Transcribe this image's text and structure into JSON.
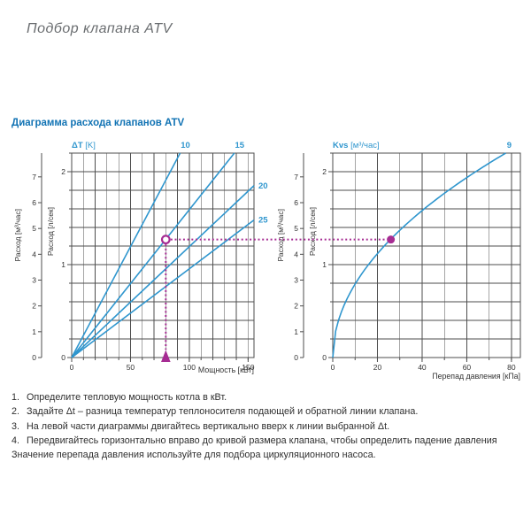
{
  "page": {
    "title": "Подбор клапана ATV",
    "section_title": "Диаграмма расхода клапанов ATV"
  },
  "colors": {
    "accent_blue": "#2f96ce",
    "title_blue": "#1173b4",
    "magenta": "#a62c93",
    "grid": "#4d4d4d",
    "text_dark": "#333333",
    "header_gray": "#6a6d70"
  },
  "chart_data": [
    {
      "name": "power-flow-chart",
      "type": "line",
      "title_bold": "ΔT",
      "title_unit": " [K]",
      "xlabel": "Мощность [кВт]",
      "ylabel_primary": "Расход [м³/час]",
      "ylabel_secondary": "Расход [л/сек]",
      "xlim": [
        0,
        155
      ],
      "x_grid_step": 10,
      "x_ticks_labeled": [
        0,
        50,
        100,
        150
      ],
      "ylim_lsec": [
        0,
        2.2
      ],
      "y_grid_step_lsec": 0.2,
      "y_ticks_m3h": [
        0,
        1,
        2,
        3,
        4,
        5,
        6,
        7
      ],
      "y_ticks_lsec": [
        0,
        1,
        2
      ],
      "series": [
        {
          "name": "10",
          "dt_k": 10,
          "points_kw_lsec": [
            [
              0,
              0
            ],
            [
              92.2,
              2.2
            ]
          ],
          "label_pos": "top"
        },
        {
          "name": "15",
          "dt_k": 15,
          "points_kw_lsec": [
            [
              0,
              0
            ],
            [
              138.3,
              2.2
            ]
          ],
          "label_pos": "top"
        },
        {
          "name": "20",
          "dt_k": 20,
          "points_kw_lsec": [
            [
              0,
              0
            ],
            [
              155,
              1.85
            ]
          ],
          "label_pos": "right"
        },
        {
          "name": "25",
          "dt_k": 25,
          "points_kw_lsec": [
            [
              0,
              0
            ],
            [
              155,
              1.48
            ]
          ],
          "label_pos": "right"
        }
      ]
    },
    {
      "name": "kvs-pressure-chart",
      "type": "line",
      "title_bold": "Kvs",
      "title_unit": " [м³/час]",
      "xlabel": "Перепад давления [кПа]",
      "ylabel_primary": "Расход [м³/час]",
      "ylabel_secondary": "Расход [л/сек]",
      "xlim": [
        0,
        84
      ],
      "x_grid_step": 10,
      "x_ticks_labeled": [
        0,
        20,
        40,
        60,
        80
      ],
      "ylim_lsec": [
        0,
        2.2
      ],
      "y_grid_step_lsec": 0.2,
      "y_ticks_m3h": [
        0,
        1,
        2,
        3,
        4,
        5,
        6,
        7
      ],
      "y_ticks_lsec": [
        0,
        1,
        2
      ],
      "series": [
        {
          "name": "9",
          "kvs_m3h": 9
        }
      ]
    }
  ],
  "annotation": {
    "power_kw": 80,
    "flow_lsec": 1.27,
    "flow_m3h": 4.57,
    "dp_kpa": 26,
    "on_dt_line": "15",
    "on_kvs_curve": "9"
  },
  "instructions": [
    {
      "num": "1.",
      "text": "Определите тепловую мощность котла в кВт."
    },
    {
      "num": "2.",
      "text": "Задайте Δt – разница температур теплоносителя подающей и обратной линии клапана."
    },
    {
      "num": "3.",
      "text": "На левой части диаграммы двигайтесь вертикально вверх к линии выбранной Δt."
    },
    {
      "num": "4.",
      "text": "Передвигайтесь горизонтально вправо до кривой размера клапана, чтобы определить падение давления"
    },
    {
      "num": "",
      "text": "Значение перепада давления используйте для подбора циркуляционного насоса."
    }
  ]
}
